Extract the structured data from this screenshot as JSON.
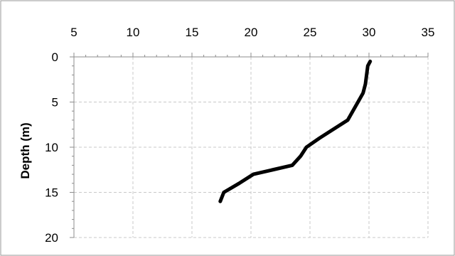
{
  "chart_data": {
    "type": "line",
    "title": "",
    "xlabel": "",
    "ylabel": "Depth (m)",
    "x_axis_position": "top",
    "y_axis_reversed": true,
    "xlim": [
      5,
      35
    ],
    "ylim": [
      0,
      20
    ],
    "x_ticks": [
      5,
      10,
      15,
      20,
      25,
      30,
      35
    ],
    "y_ticks": [
      0,
      5,
      10,
      15,
      20
    ],
    "grid": true,
    "legend": "none",
    "series": [
      {
        "color": "#000000",
        "points": [
          {
            "x": 30.1,
            "y": 0.5
          },
          {
            "x": 29.9,
            "y": 1.0
          },
          {
            "x": 29.7,
            "y": 3.0
          },
          {
            "x": 29.5,
            "y": 4.0
          },
          {
            "x": 28.2,
            "y": 7.0
          },
          {
            "x": 25.8,
            "y": 9.0
          },
          {
            "x": 24.7,
            "y": 10.0
          },
          {
            "x": 24.2,
            "y": 11.0
          },
          {
            "x": 23.5,
            "y": 12.0
          },
          {
            "x": 20.2,
            "y": 13.0
          },
          {
            "x": 19.0,
            "y": 14.0
          },
          {
            "x": 17.7,
            "y": 15.0
          },
          {
            "x": 17.4,
            "y": 16.0
          }
        ]
      }
    ]
  }
}
